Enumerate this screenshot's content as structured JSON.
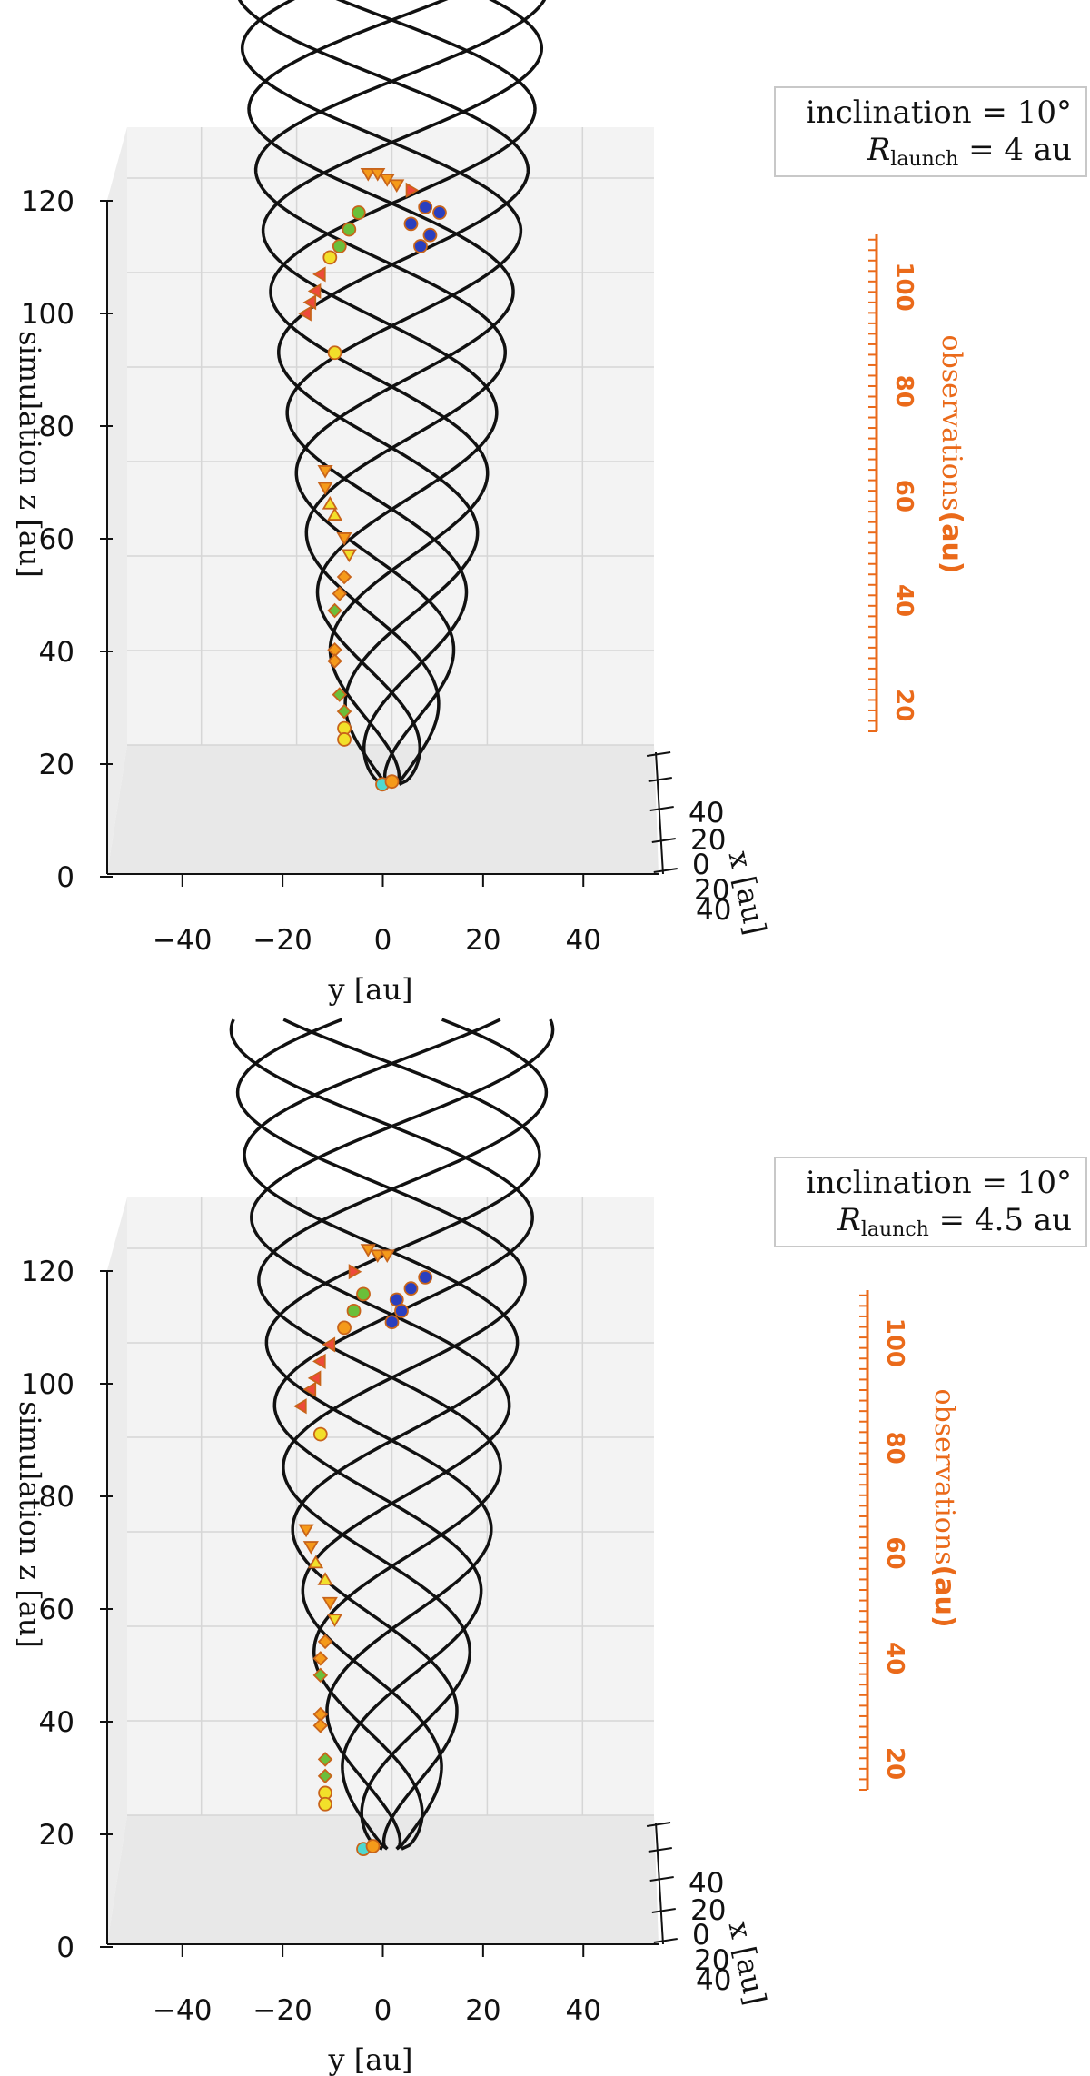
{
  "chart_data": [
    {
      "type": "scatter",
      "panel": "top",
      "xlabel": "y [au]",
      "ylabel": "simulation  z [au]",
      "depth_label": "x [au]",
      "x_ticks": [
        "−40",
        "−20",
        "0",
        "20",
        "40"
      ],
      "z_ticks": [
        "0",
        "20",
        "40",
        "60",
        "80",
        "100",
        "120"
      ],
      "depth_ticks": [
        "40",
        "20",
        "0",
        "20",
        "40"
      ],
      "xlim": [
        -55,
        55
      ],
      "zlim": [
        0,
        130
      ],
      "legend": {
        "line1": "inclination = 10°",
        "line2_prefix": "R",
        "line2_sub": "launch",
        "line2_value": " = 4 au"
      },
      "obs_axis": {
        "label": "observations",
        "unit": "(au)",
        "ticks": [
          "100",
          "80",
          "60",
          "40",
          "20"
        ],
        "range": [
          15,
          110
        ],
        "color": "#ea6a1a"
      },
      "helix": {
        "z_start": 16,
        "z_end": 160,
        "rmin": 1.5,
        "rmax": 33,
        "strands": 6,
        "turns": 2.2
      },
      "points": [
        {
          "y": -5,
          "z": 125,
          "m": "tri-down",
          "c": "#f59a1a"
        },
        {
          "y": -3,
          "z": 125,
          "m": "tri-down",
          "c": "#f59a1a"
        },
        {
          "y": -1,
          "z": 124,
          "m": "tri-down",
          "c": "#f59a1a"
        },
        {
          "y": 1,
          "z": 123,
          "m": "tri-down",
          "c": "#f59a1a"
        },
        {
          "y": 4,
          "z": 122,
          "m": "tri-right",
          "c": "#ee4a3a"
        },
        {
          "y": 7,
          "z": 119,
          "m": "circle",
          "c": "#2a3fbf"
        },
        {
          "y": 10,
          "z": 118,
          "m": "circle",
          "c": "#2a3fbf"
        },
        {
          "y": 4,
          "z": 116,
          "m": "circle",
          "c": "#2a3fbf"
        },
        {
          "y": 8,
          "z": 114,
          "m": "circle",
          "c": "#2a3fbf"
        },
        {
          "y": 6,
          "z": 112,
          "m": "circle",
          "c": "#2a3fbf"
        },
        {
          "y": -7,
          "z": 118,
          "m": "circle",
          "c": "#6bbf3a"
        },
        {
          "y": -9,
          "z": 115,
          "m": "circle",
          "c": "#6bbf3a"
        },
        {
          "y": -11,
          "z": 112,
          "m": "circle",
          "c": "#6bbf3a"
        },
        {
          "y": -13,
          "z": 110,
          "m": "circle",
          "c": "#f2e02a"
        },
        {
          "y": -15,
          "z": 107,
          "m": "tri-left",
          "c": "#ee4a3a"
        },
        {
          "y": -16,
          "z": 104,
          "m": "tri-left",
          "c": "#ee4a3a"
        },
        {
          "y": -17,
          "z": 102,
          "m": "tri-left",
          "c": "#ee4a3a"
        },
        {
          "y": -18,
          "z": 100,
          "m": "tri-left",
          "c": "#ee4a3a"
        },
        {
          "y": -12,
          "z": 93,
          "m": "circle",
          "c": "#f2e02a"
        },
        {
          "y": -14,
          "z": 72,
          "m": "tri-down",
          "c": "#f59a1a"
        },
        {
          "y": -14,
          "z": 69,
          "m": "tri-down",
          "c": "#f59a1a"
        },
        {
          "y": -13,
          "z": 66,
          "m": "tri-up",
          "c": "#f2e02a"
        },
        {
          "y": -12,
          "z": 64,
          "m": "tri-up",
          "c": "#f2e02a"
        },
        {
          "y": -10,
          "z": 60,
          "m": "tri-down",
          "c": "#f59a1a"
        },
        {
          "y": -9,
          "z": 57,
          "m": "tri-down",
          "c": "#f2e02a"
        },
        {
          "y": -10,
          "z": 53,
          "m": "diamond",
          "c": "#f59a1a"
        },
        {
          "y": -11,
          "z": 50,
          "m": "diamond",
          "c": "#f59a1a"
        },
        {
          "y": -12,
          "z": 47,
          "m": "diamond",
          "c": "#6bbf3a"
        },
        {
          "y": -12,
          "z": 40,
          "m": "diamond",
          "c": "#f59a1a"
        },
        {
          "y": -12,
          "z": 38,
          "m": "diamond",
          "c": "#f59a1a"
        },
        {
          "y": -11,
          "z": 32,
          "m": "diamond",
          "c": "#6bbf3a"
        },
        {
          "y": -10,
          "z": 29,
          "m": "diamond",
          "c": "#6bbf3a"
        },
        {
          "y": -10,
          "z": 26,
          "m": "circle",
          "c": "#f2e02a"
        },
        {
          "y": -10,
          "z": 24,
          "m": "circle",
          "c": "#f2e02a"
        },
        {
          "y": -2,
          "z": 16,
          "m": "circle",
          "c": "#4fd8d0"
        },
        {
          "y": 0,
          "z": 16.5,
          "m": "circle",
          "c": "#f59a1a"
        }
      ]
    },
    {
      "type": "scatter",
      "panel": "bottom",
      "xlabel": "y [au]",
      "ylabel": "simulation  z [au]",
      "depth_label": "x [au]",
      "x_ticks": [
        "−40",
        "−20",
        "0",
        "20",
        "40"
      ],
      "z_ticks": [
        "0",
        "20",
        "40",
        "60",
        "80",
        "100",
        "120"
      ],
      "depth_ticks": [
        "40",
        "20",
        "0",
        "20",
        "40"
      ],
      "xlim": [
        -55,
        55
      ],
      "zlim": [
        0,
        130
      ],
      "legend": {
        "line1": "inclination = 10°",
        "line2_prefix": "R",
        "line2_sub": "launch",
        "line2_value": " = 4.5 au"
      },
      "obs_axis": {
        "label": "observations",
        "unit": "(au)",
        "ticks": [
          "100",
          "80",
          "60",
          "40",
          "20"
        ],
        "range": [
          15,
          110
        ],
        "color": "#ea6a1a"
      },
      "helix": {
        "z_start": 17,
        "z_end": 165,
        "rmin": 2,
        "rmax": 34,
        "strands": 6,
        "turns": 2.2
      },
      "points": [
        {
          "y": -5,
          "z": 124,
          "m": "tri-down",
          "c": "#f59a1a"
        },
        {
          "y": -3,
          "z": 123,
          "m": "tri-down",
          "c": "#f59a1a"
        },
        {
          "y": -1,
          "z": 123,
          "m": "tri-down",
          "c": "#f59a1a"
        },
        {
          "y": -8,
          "z": 120,
          "m": "tri-right",
          "c": "#ee4a3a"
        },
        {
          "y": 7,
          "z": 119,
          "m": "circle",
          "c": "#2a3fbf"
        },
        {
          "y": 4,
          "z": 117,
          "m": "circle",
          "c": "#2a3fbf"
        },
        {
          "y": 1,
          "z": 115,
          "m": "circle",
          "c": "#2a3fbf"
        },
        {
          "y": 2,
          "z": 113,
          "m": "circle",
          "c": "#2a3fbf"
        },
        {
          "y": 0,
          "z": 111,
          "m": "circle",
          "c": "#2a3fbf"
        },
        {
          "y": -6,
          "z": 116,
          "m": "circle",
          "c": "#6bbf3a"
        },
        {
          "y": -8,
          "z": 113,
          "m": "circle",
          "c": "#6bbf3a"
        },
        {
          "y": -10,
          "z": 110,
          "m": "circle",
          "c": "#f59a1a"
        },
        {
          "y": -13,
          "z": 107,
          "m": "tri-left",
          "c": "#ee4a3a"
        },
        {
          "y": -15,
          "z": 104,
          "m": "tri-left",
          "c": "#ee4a3a"
        },
        {
          "y": -16,
          "z": 101,
          "m": "tri-left",
          "c": "#ee4a3a"
        },
        {
          "y": -17,
          "z": 99,
          "m": "tri-left",
          "c": "#ee4a3a"
        },
        {
          "y": -19,
          "z": 96,
          "m": "tri-left",
          "c": "#ee4a3a"
        },
        {
          "y": -15,
          "z": 91,
          "m": "circle",
          "c": "#f2e02a"
        },
        {
          "y": -18,
          "z": 74,
          "m": "tri-down",
          "c": "#f59a1a"
        },
        {
          "y": -17,
          "z": 71,
          "m": "tri-down",
          "c": "#f59a1a"
        },
        {
          "y": -16,
          "z": 68,
          "m": "tri-up",
          "c": "#f2e02a"
        },
        {
          "y": -14,
          "z": 65,
          "m": "tri-up",
          "c": "#f2e02a"
        },
        {
          "y": -13,
          "z": 61,
          "m": "tri-down",
          "c": "#f59a1a"
        },
        {
          "y": -12,
          "z": 58,
          "m": "tri-down",
          "c": "#f2e02a"
        },
        {
          "y": -14,
          "z": 54,
          "m": "diamond",
          "c": "#f59a1a"
        },
        {
          "y": -15,
          "z": 51,
          "m": "diamond",
          "c": "#f59a1a"
        },
        {
          "y": -15,
          "z": 48,
          "m": "diamond",
          "c": "#6bbf3a"
        },
        {
          "y": -15,
          "z": 41,
          "m": "diamond",
          "c": "#f59a1a"
        },
        {
          "y": -15,
          "z": 39,
          "m": "diamond",
          "c": "#f59a1a"
        },
        {
          "y": -14,
          "z": 33,
          "m": "diamond",
          "c": "#6bbf3a"
        },
        {
          "y": -14,
          "z": 30,
          "m": "diamond",
          "c": "#6bbf3a"
        },
        {
          "y": -14,
          "z": 27,
          "m": "circle",
          "c": "#f2e02a"
        },
        {
          "y": -14,
          "z": 25,
          "m": "circle",
          "c": "#f2e02a"
        },
        {
          "y": -6,
          "z": 17,
          "m": "circle",
          "c": "#4fd8d0"
        },
        {
          "y": -4,
          "z": 17.5,
          "m": "circle",
          "c": "#f59a1a"
        }
      ]
    }
  ]
}
